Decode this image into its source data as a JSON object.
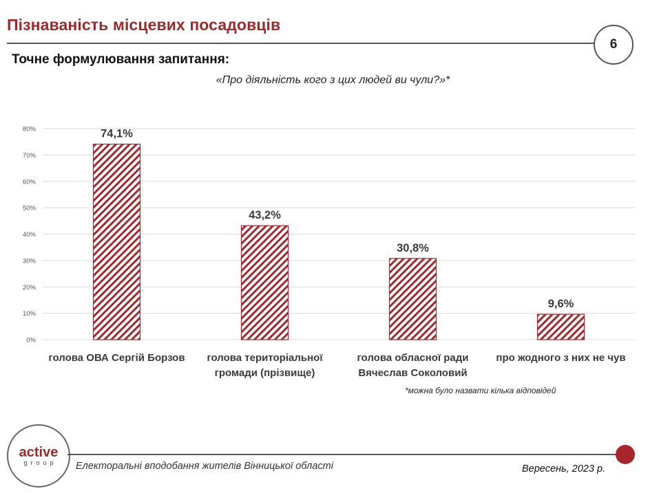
{
  "header": {
    "title": "Пізнаваність місцевих посадовців",
    "page_number": "6",
    "question_heading": "Точне формулювання запитання:",
    "question_text": "«Про діяльність кого з цих людей ви чули?»*"
  },
  "chart_data": {
    "type": "bar",
    "title": "",
    "xlabel": "",
    "ylabel": "",
    "ylim": [
      0,
      80
    ],
    "yticks": [
      "0%",
      "10%",
      "20%",
      "30%",
      "40%",
      "50%",
      "60%",
      "70%",
      "80%"
    ],
    "categories": [
      [
        "голова ОВА Сергій Борзов"
      ],
      [
        "голова територіальної",
        "громади (прізвище)"
      ],
      [
        "голова обласної ради",
        "Вячеслав Соколовий"
      ],
      [
        "про жодного з них не чув"
      ]
    ],
    "values": [
      74.1,
      43.2,
      30.8,
      9.6
    ],
    "value_labels": [
      "74,1%",
      "43,2%",
      "30,8%",
      "9,6%"
    ],
    "bar_color": "#a6262b",
    "grid": true
  },
  "footnote": "*можна було назвати кілька відповідей",
  "footer": {
    "logo_main": "active",
    "logo_sub": "group",
    "left_text": "Електоральні вподобання жителів Вінницької області",
    "right_text": "Вересень, 2023 р."
  }
}
